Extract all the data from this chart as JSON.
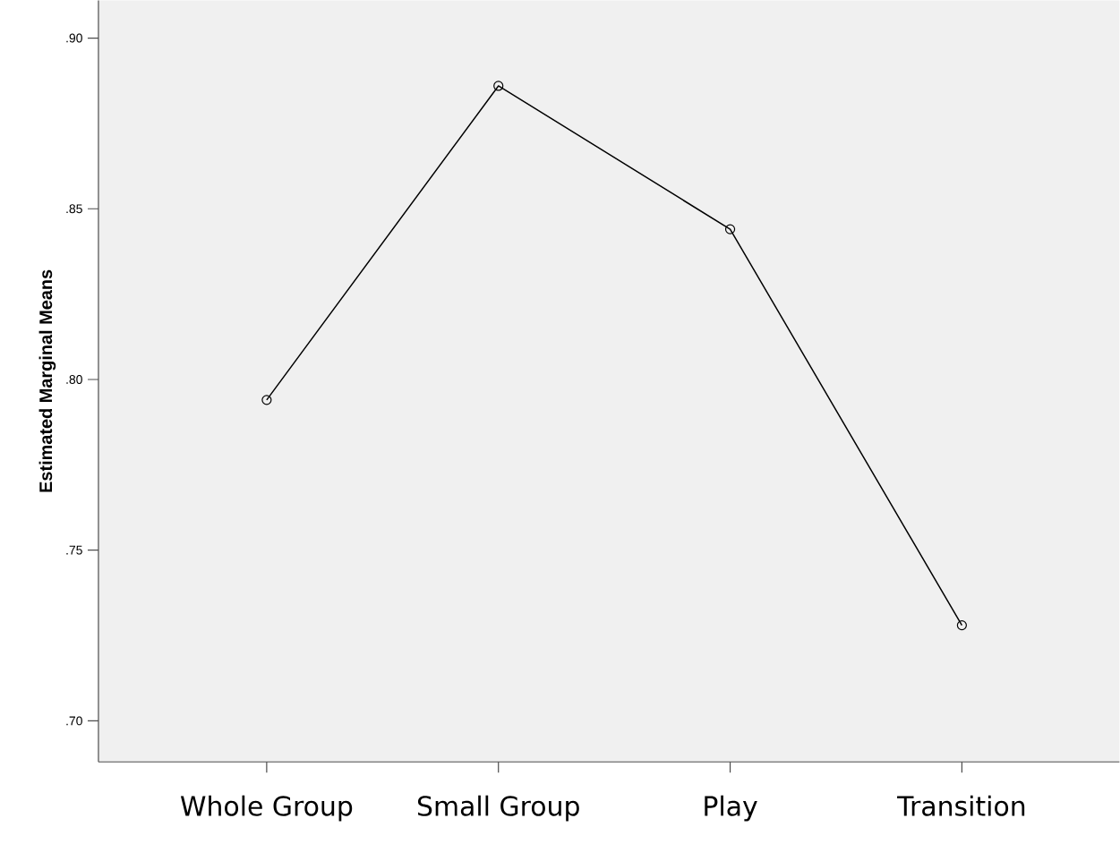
{
  "chart_data": {
    "type": "line",
    "ylabel": "Estimated Marginal Means",
    "categories": [
      "Whole Group",
      "Small Group",
      "Play",
      "Transition"
    ],
    "series": [
      {
        "color": "#000000",
        "values": [
          0.794,
          0.886,
          0.844,
          0.728
        ]
      }
    ],
    "ylim": [
      0.688,
      0.911
    ],
    "yticks": [
      {
        "value": 0.7,
        "label": ".70"
      },
      {
        "value": 0.75,
        "label": ".75"
      },
      {
        "value": 0.8,
        "label": ".80"
      },
      {
        "value": 0.85,
        "label": ".85"
      },
      {
        "value": 0.9,
        "label": ".90"
      }
    ],
    "marker": "circle",
    "line_style": "solid",
    "grid": false
  }
}
